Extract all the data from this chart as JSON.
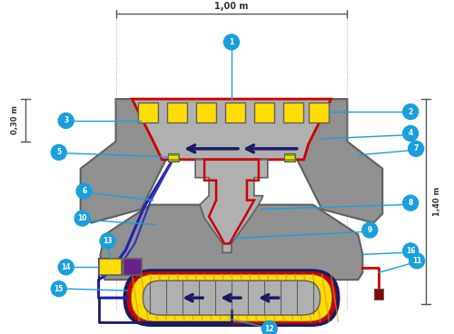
{
  "bg_color": "#ffffff",
  "dim_1_00_m": "1,00 m",
  "dim_0_30_m": "0,30 m",
  "dim_1_40_m": "1,40 m",
  "gray_light": "#b0b0b0",
  "gray_mid": "#909090",
  "gray_dark": "#606060",
  "red_color": "#cc0000",
  "yellow_color": "#ffdd00",
  "blue_dark": "#1a1a88",
  "blue_circle": "#1a9fdc",
  "purple_color": "#662288",
  "navy_color": "#1a1a66",
  "wire_blue": "#2222aa",
  "wire_blue2": "#3333bb",
  "connector_red": "#880000"
}
